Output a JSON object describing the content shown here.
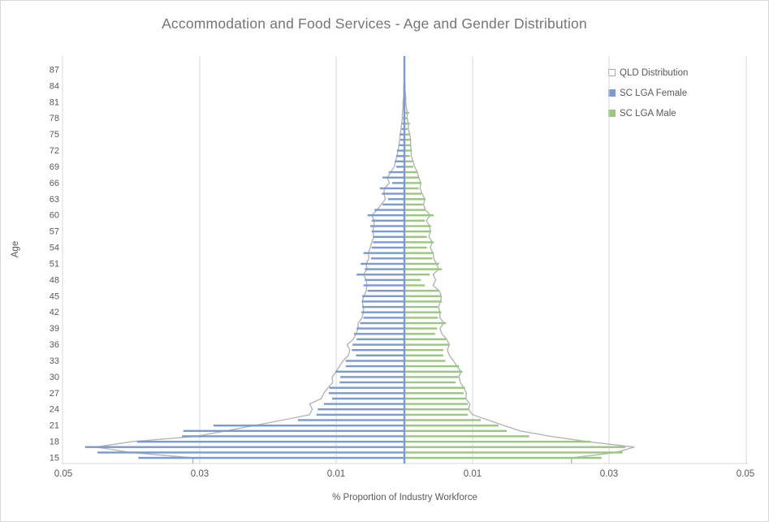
{
  "title": "Accommodation and Food Services - Age and Gender Distribution",
  "legend": {
    "items": [
      {
        "label": "QLD Distribution",
        "swatch": "outline-square",
        "color": "#ababab"
      },
      {
        "label": "SC LGA Female",
        "swatch": "filled-square",
        "color": "#7c9ad0"
      },
      {
        "label": "SC LGA Male",
        "swatch": "filled-square",
        "color": "#9ac77f"
      }
    ]
  },
  "axes": {
    "x_title": "% Proportion of Industry Workforce",
    "y_title": "Age",
    "x_tick_labels": [
      "0.05",
      "0.03",
      "0.01"
    ],
    "x_tick_values": [
      0.05,
      0.03,
      0.01
    ],
    "age_tick_min": 15,
    "age_tick_max": 87,
    "age_tick_step": 3
  },
  "colors": {
    "female_bar": "#7c9ad0",
    "male_bar": "#9ac77f",
    "qld_outline": "#b5b5b5",
    "gridline": "#d9d9d9",
    "axis_line": "#d9d9d9",
    "center_line": "#7c9ad0",
    "tick_text": "#595959",
    "title_text": "#757575"
  },
  "chart_data": {
    "type": "bar",
    "subtype": "population-pyramid",
    "title": "Accommodation and Food Services - Age and Gender Distribution",
    "xlabel": "% Proportion of Industry Workforce",
    "ylabel": "Age",
    "x_axis_range_each_side": [
      0,
      0.05
    ],
    "grid": true,
    "legend_position": "top-right",
    "age_min": 15,
    "age_max": 88,
    "series": [
      {
        "name": "SC LGA Female",
        "side": "left",
        "style": "filled-bars",
        "values": [
          0.039,
          0.045,
          0.0468,
          0.0392,
          0.0326,
          0.0324,
          0.028,
          0.0156,
          0.0129,
          0.0127,
          0.0118,
          0.0106,
          0.0111,
          0.011,
          0.0095,
          0.0094,
          0.0101,
          0.0086,
          0.0086,
          0.0071,
          0.0077,
          0.0076,
          0.007,
          0.0074,
          0.007,
          0.0065,
          0.006,
          0.0063,
          0.0062,
          0.0062,
          0.0062,
          0.0054,
          0.006,
          0.0058,
          0.007,
          0.0058,
          0.0064,
          0.0049,
          0.006,
          0.0048,
          0.0046,
          0.0046,
          0.0048,
          0.005,
          0.0048,
          0.0054,
          0.0044,
          0.0032,
          0.0024,
          0.0033,
          0.0036,
          0.0018,
          0.0032,
          0.0023,
          0.0012,
          0.0014,
          0.0012,
          0.0011,
          0.0008,
          0.0006,
          0.0007,
          0.0004,
          0.0003,
          0.0002,
          0.0001,
          0,
          0,
          0,
          0,
          0,
          0,
          0,
          0,
          0
        ]
      },
      {
        "name": "SC LGA Male",
        "side": "right",
        "style": "filled-bars",
        "values": [
          0.0289,
          0.032,
          0.0324,
          0.0273,
          0.0183,
          0.015,
          0.0138,
          0.0112,
          0.0093,
          0.0095,
          0.0093,
          0.009,
          0.0087,
          0.0089,
          0.0075,
          0.0079,
          0.0085,
          0.008,
          0.006,
          0.0057,
          0.0057,
          0.0065,
          0.0061,
          0.0045,
          0.0048,
          0.0061,
          0.0049,
          0.0054,
          0.0049,
          0.0055,
          0.0054,
          0.0051,
          0.003,
          0.0024,
          0.0037,
          0.0055,
          0.0051,
          0.0041,
          0.0043,
          0.0033,
          0.0043,
          0.0033,
          0.0039,
          0.0039,
          0.003,
          0.0043,
          0.0031,
          0.0027,
          0.0031,
          0.0025,
          0.0021,
          0.0025,
          0.0021,
          0.0019,
          0.0013,
          0.0012,
          0.0008,
          0.0011,
          0.001,
          0.001,
          0.0008,
          0.0005,
          0.0008,
          0.0005,
          0.0007,
          0,
          0,
          0,
          0,
          0,
          0,
          0,
          0,
          0
        ]
      },
      {
        "name": "QLD Distribution (female side)",
        "side": "left",
        "style": "outline",
        "values": [
          0.031,
          0.04,
          0.0452,
          0.04,
          0.0305,
          0.0262,
          0.022,
          0.0179,
          0.0139,
          0.0135,
          0.0139,
          0.0122,
          0.0118,
          0.0112,
          0.0105,
          0.0106,
          0.01,
          0.0095,
          0.009,
          0.0082,
          0.008,
          0.0084,
          0.0075,
          0.0071,
          0.0068,
          0.0068,
          0.0062,
          0.006,
          0.006,
          0.0062,
          0.0059,
          0.0056,
          0.0055,
          0.0056,
          0.006,
          0.0055,
          0.0056,
          0.0052,
          0.0053,
          0.005,
          0.0048,
          0.0045,
          0.0046,
          0.0045,
          0.0044,
          0.0048,
          0.004,
          0.0034,
          0.0028,
          0.003,
          0.0029,
          0.0022,
          0.0025,
          0.002,
          0.0015,
          0.0013,
          0.0011,
          0.0009,
          0.0008,
          0.0007,
          0.0006,
          0.0005,
          0.0004,
          0.0003,
          0.0003,
          0.0002,
          0.0002,
          0.0001,
          0.0001,
          0.0001,
          0,
          0,
          0,
          0
        ]
      },
      {
        "name": "QLD Distribution (male side)",
        "side": "right",
        "style": "outline",
        "values": [
          0.0245,
          0.031,
          0.0337,
          0.0269,
          0.0214,
          0.017,
          0.0146,
          0.0123,
          0.01,
          0.0094,
          0.0096,
          0.009,
          0.0091,
          0.0087,
          0.0082,
          0.008,
          0.0083,
          0.0077,
          0.0072,
          0.0066,
          0.0063,
          0.0066,
          0.0062,
          0.0055,
          0.0052,
          0.0058,
          0.0052,
          0.0052,
          0.005,
          0.0053,
          0.0054,
          0.0051,
          0.0042,
          0.0046,
          0.0042,
          0.005,
          0.0047,
          0.0043,
          0.0042,
          0.0038,
          0.0041,
          0.0036,
          0.0038,
          0.0037,
          0.0032,
          0.0038,
          0.0031,
          0.0028,
          0.003,
          0.0026,
          0.0023,
          0.0024,
          0.0021,
          0.0019,
          0.0015,
          0.0013,
          0.001,
          0.001,
          0.0009,
          0.0009,
          0.0008,
          0.0006,
          0.0006,
          0.0004,
          0.0004,
          0.0003,
          0.0002,
          0.0002,
          0.0001,
          0.0001,
          0,
          0,
          0,
          0
        ]
      }
    ]
  }
}
